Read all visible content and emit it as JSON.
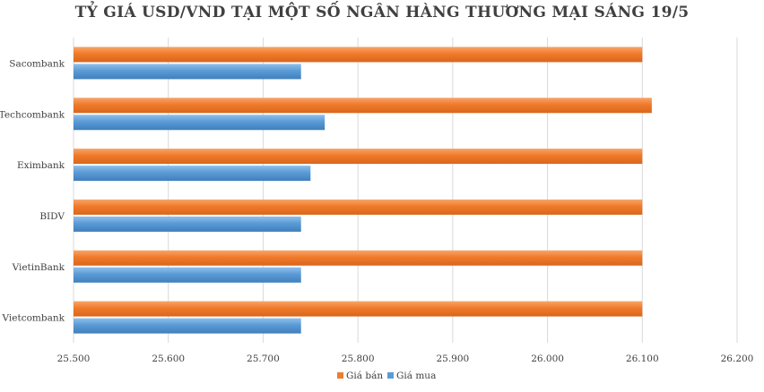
{
  "chart_data": {
    "type": "bar",
    "orientation": "horizontal",
    "title": "TỶ GIÁ USD/VND TẠI MỘT SỐ NGÂN HÀNG THƯƠNG MẠI SÁNG 19/5",
    "categories": [
      "Sacombank",
      "Techcombank",
      "Eximbank",
      "BIDV",
      "VietinBank",
      "Vietcombank"
    ],
    "series": [
      {
        "name": "Giá bán",
        "color": "#ED7D31",
        "values": [
          26100,
          26110,
          26100,
          26100,
          26100,
          26100
        ]
      },
      {
        "name": "Giá mua",
        "color": "#5B9BD5",
        "values": [
          25740,
          25765,
          25750,
          25740,
          25740,
          25740
        ]
      }
    ],
    "xlim": [
      25500,
      26200
    ],
    "x_ticks": [
      "25.500",
      "25.600",
      "25.700",
      "25.800",
      "25.900",
      "26.000",
      "26.100",
      "26.200"
    ],
    "grid": true,
    "legend_position": "bottom"
  }
}
